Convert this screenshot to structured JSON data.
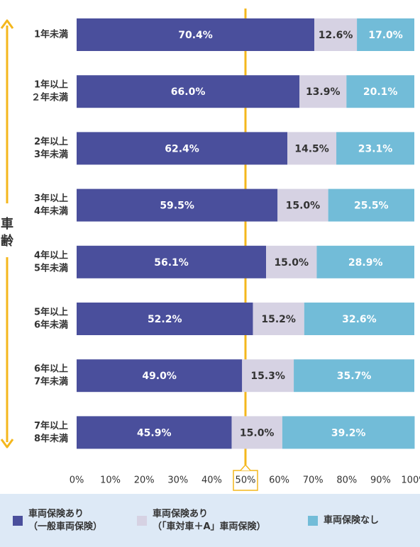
{
  "chart_data": {
    "type": "bar",
    "orientation": "horizontal",
    "stacked": true,
    "axis_title": "車齢",
    "categories": [
      [
        "1年未満"
      ],
      [
        "1年以上",
        "２年未満"
      ],
      [
        "2年以上",
        "3年未満"
      ],
      [
        "3年以上",
        "4年未満"
      ],
      [
        "4年以上",
        "5年未満"
      ],
      [
        "5年以上",
        "6年未満"
      ],
      [
        "6年以上",
        "7年未満"
      ],
      [
        "7年以上",
        "8年未満"
      ]
    ],
    "series": [
      {
        "name": "車両保険あり（一般車両保険）",
        "color": "#4a4f9c",
        "values": [
          70.4,
          66.0,
          62.4,
          59.5,
          56.1,
          52.2,
          49.0,
          45.9
        ]
      },
      {
        "name": "車両保険あり（「車対車＋A」車両保険）",
        "color": "#d6d2e3",
        "values": [
          12.6,
          13.9,
          14.5,
          15.0,
          15.0,
          15.2,
          15.3,
          15.0
        ]
      },
      {
        "name": "車両保険なし",
        "color": "#72bcd8",
        "values": [
          17.0,
          20.1,
          23.1,
          25.5,
          28.9,
          32.6,
          35.7,
          39.2
        ]
      }
    ],
    "value_labels": [
      [
        "70.4%",
        "66.0%",
        "62.4%",
        "59.5%",
        "56.1%",
        "52.2%",
        "49.0%",
        "45.9%"
      ],
      [
        "12.6%",
        "13.9%",
        "14.5%",
        "15.0%",
        "15.0%",
        "15.2%",
        "15.3%",
        "15.0%"
      ],
      [
        "17.0%",
        "20.1%",
        "23.1%",
        "25.5%",
        "28.9%",
        "32.6%",
        "35.7%",
        "39.2%"
      ]
    ],
    "x_ticks": [
      "0%",
      "10%",
      "20%",
      "30%",
      "40%",
      "50%",
      "60%",
      "70%",
      "80%",
      "90%",
      "100%"
    ],
    "xlim": [
      0,
      100
    ],
    "reference_line": 50,
    "reference_color": "#f4b71c",
    "highlight_tick": "50%"
  },
  "legend": {
    "items": [
      {
        "lines": [
          "車両保険あり",
          "（一般車両保険）"
        ],
        "color": "#4a4f9c"
      },
      {
        "lines": [
          "車両保険あり",
          "（「車対車＋A」車両保険）"
        ],
        "color": "#d6d2e3"
      },
      {
        "lines": [
          "車両保険なし"
        ],
        "color": "#72bcd8"
      }
    ]
  }
}
